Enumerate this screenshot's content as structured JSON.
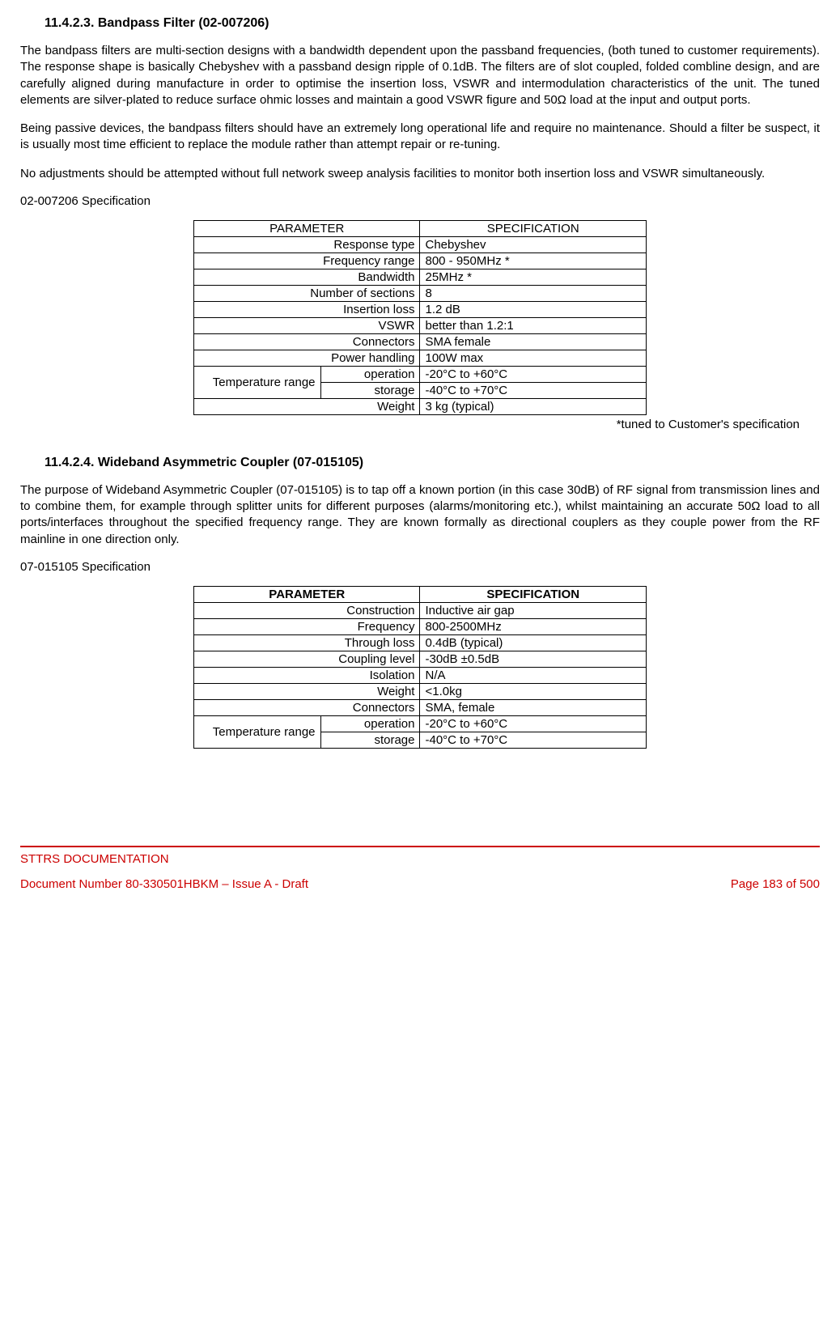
{
  "section1": {
    "heading": "11.4.2.3.   Bandpass Filter (02-007206)",
    "para1": "The bandpass filters are multi-section designs with a bandwidth dependent upon the passband frequencies, (both tuned to customer requirements). The response shape is basically Chebyshev with a passband design ripple of 0.1dB. The filters are of slot coupled, folded combline design, and are carefully aligned during manufacture in order to optimise the insertion loss, VSWR and intermodulation characteristics of the unit. The tuned elements are silver-plated to reduce surface ohmic losses and maintain a good VSWR figure and 50Ω load at the input and output ports.",
    "para2": "Being passive devices, the bandpass filters should have an extremely long operational life and require no maintenance. Should a filter be suspect, it is usually most time efficient to replace the module rather than attempt repair or re-tuning.",
    "para3": "No adjustments should be attempted without full network sweep analysis facilities to monitor both insertion loss and VSWR simultaneously.",
    "spec_title": "02-007206 Specification",
    "table_header_param": "PARAMETER",
    "table_header_spec": "SPECIFICATION",
    "rows": {
      "r0p": "Response type",
      "r0v": "Chebyshev",
      "r1p": "Frequency range",
      "r1v": "800 - 950MHz *",
      "r2p": "Bandwidth",
      "r2v": "25MHz *",
      "r3p": "Number of sections",
      "r3v": "8",
      "r4p": "Insertion loss",
      "r4v": "1.2 dB",
      "r5p": "VSWR",
      "r5v": "better than 1.2:1",
      "r6p": "Connectors",
      "r6v": "SMA female",
      "r7p": "Power handling",
      "r7v": "100W max",
      "r8a": "Temperature range",
      "r8b": "operation",
      "r8v": "-20°C to +60°C",
      "r9b": "storage",
      "r9v": "-40°C to +70°C",
      "r10p": "Weight",
      "r10v": "3 kg (typical)"
    },
    "note": "*tuned to Customer's specification"
  },
  "section2": {
    "heading": "11.4.2.4.   Wideband Asymmetric Coupler (07-015105)",
    "para1": "The purpose of Wideband Asymmetric Coupler (07-015105) is to tap off a known portion (in this case 30dB) of RF signal from transmission lines and to combine them, for example through splitter units for different purposes (alarms/monitoring etc.), whilst maintaining an accurate 50Ω load to all ports/interfaces throughout the specified frequency range. They are known formally as directional couplers as they couple power from the RF mainline in one direction only.",
    "spec_title": "07-015105 Specification",
    "table_header_param": "PARAMETER",
    "table_header_spec": "SPECIFICATION",
    "rows": {
      "r0p": "Construction",
      "r0v": "Inductive air gap",
      "r1p": "Frequency",
      "r1v": "800-2500MHz",
      "r2p": "Through loss",
      "r2v": "0.4dB (typical)",
      "r3p": "Coupling level",
      "r3v": "-30dB ±0.5dB",
      "r4p": "Isolation",
      "r4v": "N/A",
      "r5p": "Weight",
      "r5v": "<1.0kg",
      "r6p": "Connectors",
      "r6v": "SMA, female",
      "r7a": "Temperature range",
      "r7b": "operation",
      "r7v": "-20°C to +60°C",
      "r8b": "storage",
      "r8v": "-40°C to +70°C"
    }
  },
  "footer": {
    "line1": "STTRS DOCUMENTATION",
    "doc": "Document Number 80-330501HBKM – Issue A - Draft",
    "page": "Page 183 of 500"
  }
}
